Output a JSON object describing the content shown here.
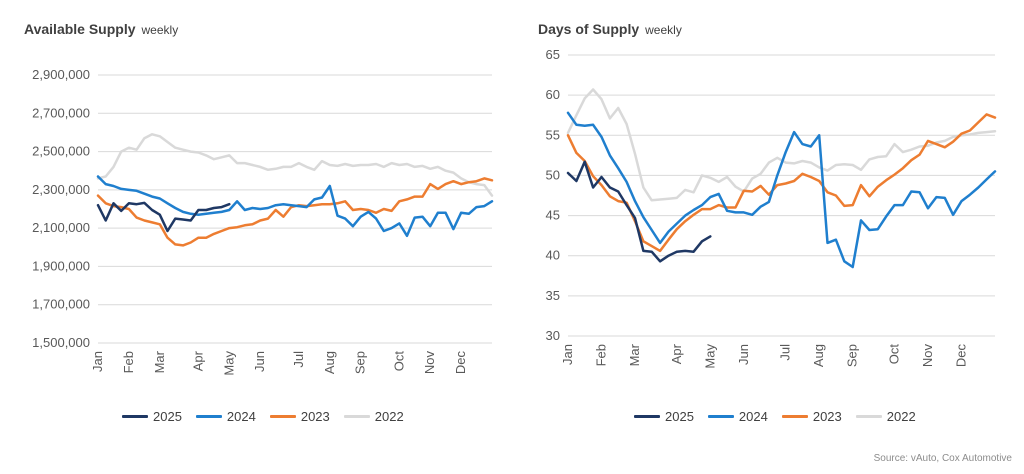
{
  "colors": {
    "s2025": "#1f3864",
    "s2024": "#1f7fce",
    "s2023": "#ed7d31",
    "s2022": "#d9d9d9",
    "grid": "#d9d9d9",
    "axis_text": "#595959"
  },
  "source": "Source: vAuto, Cox Automotive",
  "chart_data": [
    {
      "type": "line",
      "title": "Available Supply",
      "subtitle": "weekly",
      "ylim": [
        1500000,
        2900000
      ],
      "yticks": [
        1500000,
        1700000,
        1900000,
        2100000,
        2300000,
        2500000,
        2700000,
        2900000
      ],
      "ytick_labels": [
        "1,500,000",
        "1,700,000",
        "1,900,000",
        "2,100,000",
        "2,300,000",
        "2,500,000",
        "2,700,000",
        "2,900,000"
      ],
      "xlim": [
        1,
        52
      ],
      "xticks": [
        1,
        5,
        9,
        14,
        18,
        22,
        27,
        31,
        35,
        40,
        44,
        48
      ],
      "xtick_labels": [
        "Jan",
        "Feb",
        "Mar",
        "Apr",
        "May",
        "Jun",
        "Jul",
        "Aug",
        "Sep",
        "Oct",
        "Nov",
        "Dec"
      ],
      "grid": true,
      "legend": "bottom",
      "legend_entries": [
        "2025",
        "2024",
        "2023",
        "2022"
      ],
      "series": [
        {
          "name": "2025",
          "color_key": "s2025",
          "values": [
            2220000,
            2140000,
            2230000,
            2190000,
            2230000,
            2225000,
            2232000,
            2195000,
            2170000,
            2085000,
            2150000,
            2145000,
            2140000,
            2195000,
            2195000,
            2205000,
            2210000,
            2225000
          ]
        },
        {
          "name": "2024",
          "color_key": "s2024",
          "values": [
            2370000,
            2330000,
            2320000,
            2305000,
            2300000,
            2295000,
            2280000,
            2265000,
            2255000,
            2230000,
            2205000,
            2185000,
            2175000,
            2170000,
            2175000,
            2180000,
            2185000,
            2195000,
            2240000,
            2195000,
            2205000,
            2200000,
            2205000,
            2220000,
            2225000,
            2220000,
            2215000,
            2210000,
            2250000,
            2260000,
            2320000,
            2165000,
            2150000,
            2110000,
            2160000,
            2185000,
            2150000,
            2085000,
            2100000,
            2125000,
            2060000,
            2155000,
            2160000,
            2110000,
            2180000,
            2180000,
            2095000,
            2180000,
            2175000,
            2210000,
            2215000,
            2240000
          ]
        },
        {
          "name": "2023",
          "color_key": "s2023",
          "values": [
            2270000,
            2230000,
            2215000,
            2210000,
            2200000,
            2155000,
            2140000,
            2130000,
            2120000,
            2050000,
            2015000,
            2010000,
            2025000,
            2050000,
            2050000,
            2070000,
            2085000,
            2100000,
            2105000,
            2115000,
            2120000,
            2140000,
            2150000,
            2195000,
            2160000,
            2210000,
            2220000,
            2215000,
            2220000,
            2225000,
            2225000,
            2230000,
            2240000,
            2195000,
            2200000,
            2195000,
            2180000,
            2200000,
            2190000,
            2240000,
            2250000,
            2265000,
            2265000,
            2330000,
            2305000,
            2330000,
            2345000,
            2330000,
            2340000,
            2345000,
            2360000,
            2350000
          ]
        },
        {
          "name": "2022",
          "color_key": "s2022",
          "values": [
            2360000,
            2370000,
            2420000,
            2500000,
            2520000,
            2510000,
            2570000,
            2590000,
            2580000,
            2550000,
            2520000,
            2510000,
            2500000,
            2495000,
            2480000,
            2460000,
            2470000,
            2480000,
            2440000,
            2440000,
            2430000,
            2420000,
            2405000,
            2410000,
            2420000,
            2420000,
            2440000,
            2420000,
            2405000,
            2450000,
            2430000,
            2425000,
            2435000,
            2425000,
            2430000,
            2430000,
            2435000,
            2420000,
            2440000,
            2430000,
            2435000,
            2420000,
            2425000,
            2410000,
            2420000,
            2400000,
            2390000,
            2360000,
            2340000,
            2330000,
            2325000,
            2270000
          ]
        }
      ]
    },
    {
      "type": "line",
      "title": "Days of Supply",
      "subtitle": "weekly",
      "ylim": [
        30,
        65
      ],
      "yticks": [
        30,
        35,
        40,
        45,
        50,
        55,
        60,
        65
      ],
      "ytick_labels": [
        "30",
        "35",
        "40",
        "45",
        "50",
        "55",
        "60",
        "65"
      ],
      "xlim": [
        1,
        52
      ],
      "xticks": [
        1,
        5,
        9,
        14,
        18,
        22,
        27,
        31,
        35,
        40,
        44,
        48
      ],
      "xtick_labels": [
        "Jan",
        "Feb",
        "Mar",
        "Apr",
        "May",
        "Jun",
        "Jul",
        "Aug",
        "Sep",
        "Oct",
        "Nov",
        "Dec"
      ],
      "grid": true,
      "legend": "bottom",
      "legend_entries": [
        "2025",
        "2024",
        "2023",
        "2022"
      ],
      "series": [
        {
          "name": "2025",
          "color_key": "s2025",
          "values": [
            50.3,
            49.3,
            51.7,
            48.5,
            49.8,
            48.5,
            48.0,
            46.3,
            44.7,
            40.6,
            40.5,
            39.3,
            40.0,
            40.5,
            40.6,
            40.5,
            41.8,
            42.4
          ]
        },
        {
          "name": "2024",
          "color_key": "s2024",
          "values": [
            57.8,
            56.3,
            56.2,
            56.3,
            54.8,
            52.5,
            50.9,
            49.2,
            46.8,
            44.8,
            43.2,
            41.6,
            43.0,
            44.0,
            45.0,
            45.7,
            46.3,
            47.3,
            47.7,
            45.6,
            45.4,
            45.4,
            45.1,
            46.1,
            46.7,
            50.0,
            52.9,
            55.4,
            53.9,
            53.6,
            55.0,
            41.6,
            42.0,
            39.3,
            38.6,
            44.4,
            43.2,
            43.3,
            44.9,
            46.3,
            46.3,
            48.0,
            47.9,
            45.9,
            47.3,
            47.2,
            45.1,
            46.8,
            47.6,
            48.5,
            49.5,
            50.5
          ]
        },
        {
          "name": "2023",
          "color_key": "s2023",
          "values": [
            55.0,
            52.8,
            51.8,
            49.9,
            48.8,
            47.4,
            46.8,
            46.6,
            44.3,
            41.8,
            41.2,
            40.6,
            42.0,
            43.3,
            44.3,
            45.1,
            45.8,
            45.8,
            46.3,
            46.0,
            46.0,
            48.1,
            48.0,
            48.7,
            47.6,
            48.8,
            49.0,
            49.3,
            50.2,
            49.8,
            49.3,
            47.9,
            47.5,
            46.2,
            46.3,
            48.8,
            47.4,
            48.6,
            49.4,
            50.1,
            50.9,
            51.9,
            52.6,
            54.3,
            53.9,
            53.5,
            54.2,
            55.2,
            55.6,
            56.6,
            57.6,
            57.2
          ]
        },
        {
          "name": "2022",
          "color_key": "s2022",
          "values": [
            55.3,
            57.5,
            59.6,
            60.7,
            59.5,
            57.1,
            58.4,
            56.4,
            52.7,
            48.5,
            46.9,
            47.0,
            47.1,
            47.2,
            48.2,
            47.9,
            50.0,
            49.7,
            49.2,
            49.8,
            48.6,
            48.0,
            49.6,
            50.2,
            51.6,
            52.2,
            51.6,
            51.5,
            51.8,
            51.6,
            51.0,
            50.6,
            51.3,
            51.4,
            51.3,
            50.7,
            52.0,
            52.3,
            52.4,
            53.9,
            52.9,
            53.2,
            53.6,
            53.7,
            54.1,
            54.3,
            54.8,
            55.0,
            55.1,
            55.3,
            55.4,
            55.5
          ]
        }
      ]
    }
  ]
}
